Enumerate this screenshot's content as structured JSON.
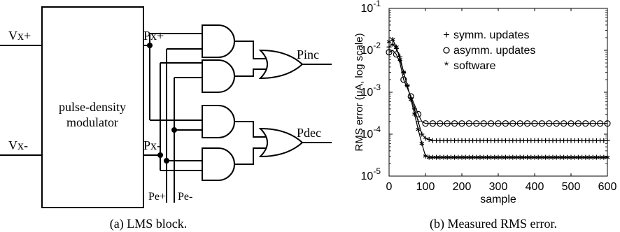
{
  "diagram": {
    "inputs": {
      "vx_plus": "Vx+",
      "vx_minus": "Vx-"
    },
    "modulator_label": [
      "pulse-density",
      "modulator"
    ],
    "signals": {
      "px_plus": "Px+",
      "px_minus": "Px-",
      "pe_plus": "Pe+",
      "pe_minus": "Pe-"
    },
    "outputs": {
      "pinc": "Pinc",
      "pdec": "Pdec"
    },
    "caption": "(a) LMS block."
  },
  "chart_data": {
    "type": "line",
    "caption": "(b) Measured RMS error.",
    "xlabel": "sample",
    "ylabel": "RMS error (uA, log scale)",
    "xlim": [
      0,
      600
    ],
    "ylim": [
      1e-05,
      0.1
    ],
    "yscale": "log",
    "xticks": [
      "0",
      "100",
      "200",
      "300",
      "400",
      "500",
      "600"
    ],
    "yticks": [
      "10^-5",
      "10^-4",
      "10^-3",
      "10^-2",
      "10^-1"
    ],
    "grid": false,
    "legend_position": "top-right",
    "series": [
      {
        "name": "symm. updates",
        "marker": "+",
        "x": [
          0,
          10,
          20,
          30,
          40,
          55,
          70,
          80,
          90,
          100,
          120,
          600
        ],
        "y": [
          0.012,
          0.014,
          0.011,
          0.007,
          0.003,
          0.001,
          0.0004,
          0.0002,
          0.0001,
          8e-05,
          7e-05,
          7e-05
        ]
      },
      {
        "name": "asymm. updates",
        "marker": "o",
        "x": [
          0,
          10,
          20,
          30,
          40,
          55,
          70,
          80,
          90,
          100,
          600
        ],
        "y": [
          0.009,
          0.01,
          0.008,
          0.005,
          0.002,
          0.001,
          0.0005,
          0.0003,
          0.0002,
          0.00018,
          0.00018
        ]
      },
      {
        "name": "software",
        "marker": "*",
        "x": [
          0,
          10,
          20,
          30,
          40,
          55,
          70,
          80,
          90,
          100,
          110,
          600
        ],
        "y": [
          0.016,
          0.018,
          0.012,
          0.006,
          0.003,
          0.001,
          0.0003,
          0.00013,
          6e-05,
          3e-05,
          2.8e-05,
          2.8e-05
        ]
      }
    ]
  }
}
